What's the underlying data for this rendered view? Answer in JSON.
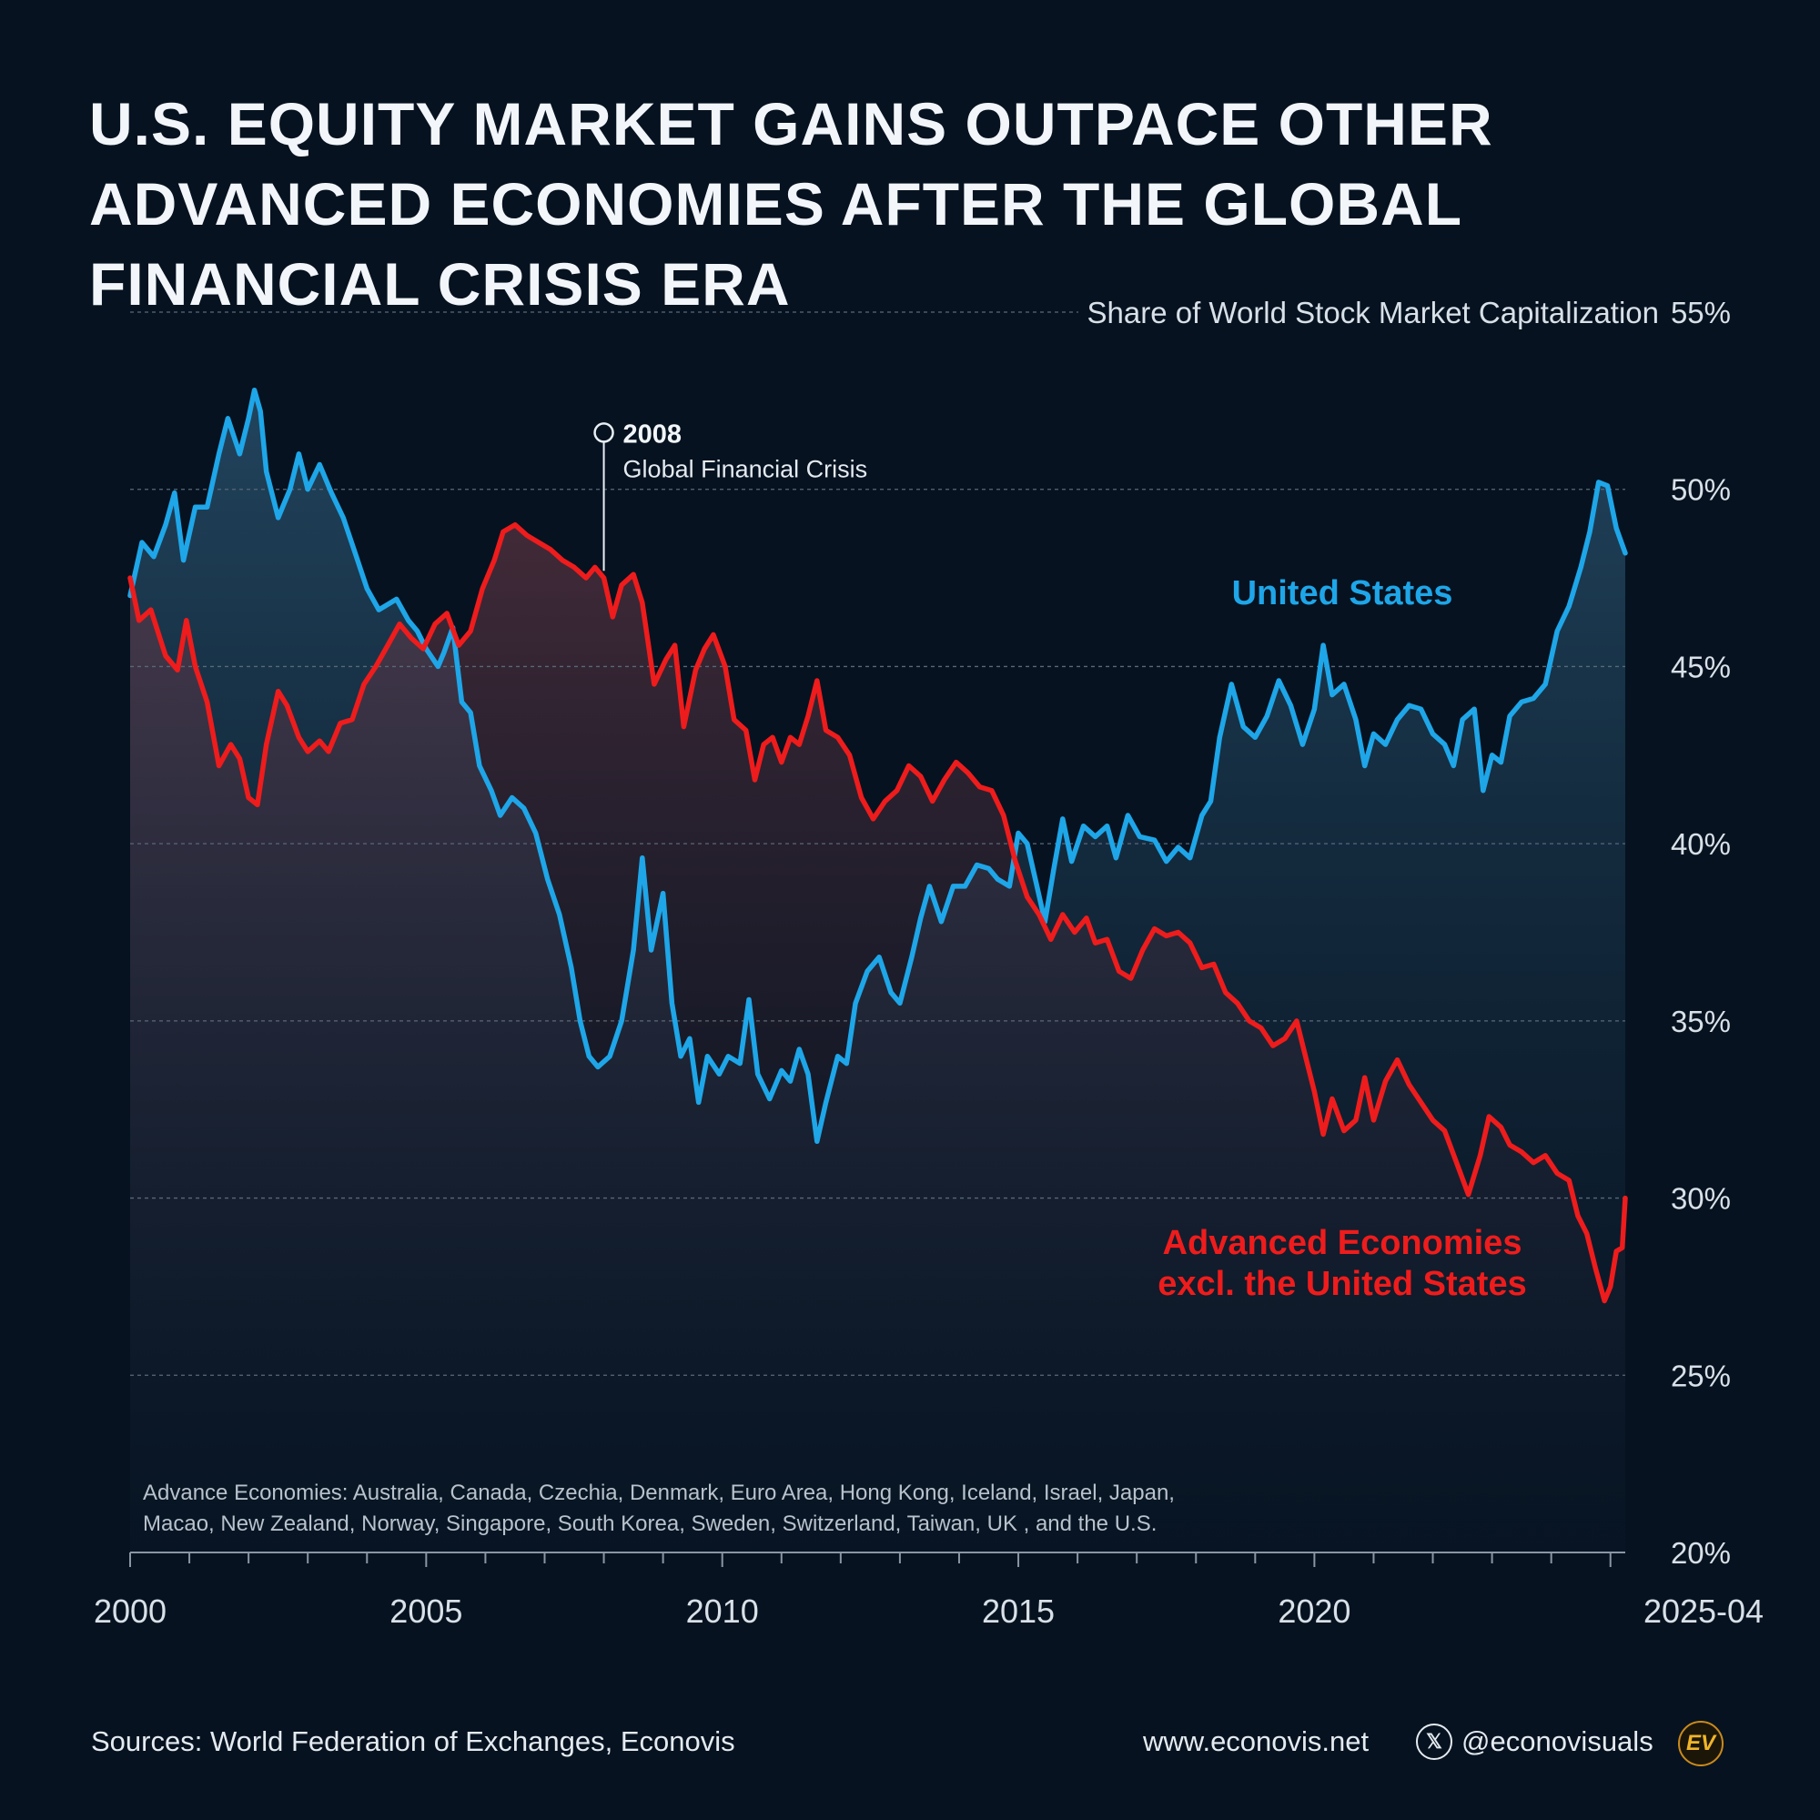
{
  "title": "U.S. EQUITY MARKET GAINS OUTPACE OTHER ADVANCED ECONOMIES AFTER THE GLOBAL FINANCIAL CRISIS ERA",
  "footer": {
    "source": "Sources: World Federation of Exchanges, Econovis",
    "website": "www.econovis.net",
    "handle": "@econovisuals",
    "logo_text": "EV"
  },
  "colors": {
    "background": "#061220",
    "us": "#1ea6e8",
    "ae": "#ee1c1c",
    "grid": "#5a6878",
    "text": "#e4eaf0"
  },
  "chart_data": {
    "type": "line",
    "ylabel": "Share of World Stock Market Capitalization",
    "ylim": [
      20,
      55
    ],
    "yticks": [
      20,
      25,
      30,
      35,
      40,
      45,
      50,
      55
    ],
    "xlim": [
      2000.0,
      2025.25
    ],
    "xticks": [
      {
        "value": 2000,
        "label": "2000"
      },
      {
        "value": 2005,
        "label": "2005"
      },
      {
        "value": 2010,
        "label": "2010"
      },
      {
        "value": 2015,
        "label": "2015"
      },
      {
        "value": 2020,
        "label": "2020"
      },
      {
        "value": 2025.25,
        "label": "2025-04"
      }
    ],
    "grid": true,
    "annotation": {
      "x": 2008.0,
      "y": 51.6,
      "year": "2008",
      "label": "Global Financial Crisis"
    },
    "note_lines": [
      "Advance Economies: Australia, Canada, Czechia, Denmark, Euro Area, Hong Kong, Iceland, Israel, Japan,",
      "Macao, New Zealand, Norway, Singapore, South Korea, Sweden, Switzerland, Taiwan, UK , and the U.S."
    ],
    "series": [
      {
        "name": "United States",
        "label_lines": [
          "United States"
        ],
        "color": "#1ea6e8",
        "points": [
          [
            2000.0,
            47.0
          ],
          [
            2000.2,
            48.5
          ],
          [
            2000.4,
            48.1
          ],
          [
            2000.6,
            49.0
          ],
          [
            2000.75,
            49.9
          ],
          [
            2000.9,
            48.0
          ],
          [
            2001.1,
            49.5
          ],
          [
            2001.3,
            49.5
          ],
          [
            2001.5,
            51.0
          ],
          [
            2001.65,
            52.0
          ],
          [
            2001.85,
            51.0
          ],
          [
            2002.0,
            52.0
          ],
          [
            2002.1,
            52.8
          ],
          [
            2002.2,
            52.2
          ],
          [
            2002.3,
            50.5
          ],
          [
            2002.5,
            49.2
          ],
          [
            2002.7,
            50.0
          ],
          [
            2002.85,
            51.0
          ],
          [
            2003.0,
            50.0
          ],
          [
            2003.2,
            50.7
          ],
          [
            2003.4,
            49.9
          ],
          [
            2003.6,
            49.2
          ],
          [
            2003.8,
            48.2
          ],
          [
            2004.0,
            47.2
          ],
          [
            2004.2,
            46.6
          ],
          [
            2004.5,
            46.9
          ],
          [
            2004.7,
            46.3
          ],
          [
            2004.85,
            46.0
          ],
          [
            2005.0,
            45.5
          ],
          [
            2005.2,
            45.0
          ],
          [
            2005.3,
            45.4
          ],
          [
            2005.45,
            46.1
          ],
          [
            2005.6,
            44.0
          ],
          [
            2005.75,
            43.7
          ],
          [
            2005.9,
            42.2
          ],
          [
            2006.1,
            41.5
          ],
          [
            2006.25,
            40.8
          ],
          [
            2006.45,
            41.3
          ],
          [
            2006.65,
            41.0
          ],
          [
            2006.85,
            40.3
          ],
          [
            2007.05,
            39.0
          ],
          [
            2007.25,
            38.0
          ],
          [
            2007.45,
            36.5
          ],
          [
            2007.6,
            35.0
          ],
          [
            2007.75,
            34.0
          ],
          [
            2007.9,
            33.7
          ],
          [
            2008.1,
            34.0
          ],
          [
            2008.3,
            35.0
          ],
          [
            2008.5,
            37.0
          ],
          [
            2008.65,
            39.6
          ],
          [
            2008.8,
            37.0
          ],
          [
            2009.0,
            38.6
          ],
          [
            2009.15,
            35.5
          ],
          [
            2009.3,
            34.0
          ],
          [
            2009.45,
            34.5
          ],
          [
            2009.6,
            32.7
          ],
          [
            2009.75,
            34.0
          ],
          [
            2009.95,
            33.5
          ],
          [
            2010.1,
            34.0
          ],
          [
            2010.3,
            33.8
          ],
          [
            2010.45,
            35.6
          ],
          [
            2010.6,
            33.5
          ],
          [
            2010.8,
            32.8
          ],
          [
            2011.0,
            33.6
          ],
          [
            2011.15,
            33.3
          ],
          [
            2011.3,
            34.2
          ],
          [
            2011.45,
            33.5
          ],
          [
            2011.6,
            31.6
          ],
          [
            2011.75,
            32.7
          ],
          [
            2011.95,
            34.0
          ],
          [
            2012.1,
            33.8
          ],
          [
            2012.25,
            35.5
          ],
          [
            2012.45,
            36.4
          ],
          [
            2012.65,
            36.8
          ],
          [
            2012.85,
            35.8
          ],
          [
            2013.0,
            35.5
          ],
          [
            2013.2,
            36.8
          ],
          [
            2013.35,
            37.9
          ],
          [
            2013.5,
            38.8
          ],
          [
            2013.7,
            37.8
          ],
          [
            2013.9,
            38.8
          ],
          [
            2014.1,
            38.8
          ],
          [
            2014.3,
            39.4
          ],
          [
            2014.5,
            39.3
          ],
          [
            2014.65,
            39.0
          ],
          [
            2014.85,
            38.8
          ],
          [
            2015.0,
            40.3
          ],
          [
            2015.15,
            40.0
          ],
          [
            2015.3,
            38.9
          ],
          [
            2015.45,
            37.8
          ],
          [
            2015.6,
            39.3
          ],
          [
            2015.75,
            40.7
          ],
          [
            2015.9,
            39.5
          ],
          [
            2016.1,
            40.5
          ],
          [
            2016.3,
            40.2
          ],
          [
            2016.5,
            40.5
          ],
          [
            2016.65,
            39.6
          ],
          [
            2016.85,
            40.8
          ],
          [
            2017.05,
            40.2
          ],
          [
            2017.3,
            40.1
          ],
          [
            2017.5,
            39.5
          ],
          [
            2017.7,
            39.9
          ],
          [
            2017.9,
            39.6
          ],
          [
            2018.1,
            40.8
          ],
          [
            2018.25,
            41.2
          ],
          [
            2018.4,
            43.0
          ],
          [
            2018.6,
            44.5
          ],
          [
            2018.8,
            43.3
          ],
          [
            2019.0,
            43.0
          ],
          [
            2019.2,
            43.6
          ],
          [
            2019.4,
            44.6
          ],
          [
            2019.6,
            43.9
          ],
          [
            2019.8,
            42.8
          ],
          [
            2020.0,
            43.8
          ],
          [
            2020.15,
            45.6
          ],
          [
            2020.3,
            44.2
          ],
          [
            2020.5,
            44.5
          ],
          [
            2020.7,
            43.5
          ],
          [
            2020.85,
            42.2
          ],
          [
            2021.0,
            43.1
          ],
          [
            2021.2,
            42.8
          ],
          [
            2021.4,
            43.5
          ],
          [
            2021.6,
            43.9
          ],
          [
            2021.8,
            43.8
          ],
          [
            2022.0,
            43.1
          ],
          [
            2022.2,
            42.8
          ],
          [
            2022.35,
            42.2
          ],
          [
            2022.5,
            43.5
          ],
          [
            2022.7,
            43.8
          ],
          [
            2022.85,
            41.5
          ],
          [
            2023.0,
            42.5
          ],
          [
            2023.15,
            42.3
          ],
          [
            2023.3,
            43.6
          ],
          [
            2023.5,
            44.0
          ],
          [
            2023.7,
            44.1
          ],
          [
            2023.9,
            44.5
          ],
          [
            2024.1,
            46.0
          ],
          [
            2024.3,
            46.7
          ],
          [
            2024.5,
            47.8
          ],
          [
            2024.65,
            48.8
          ],
          [
            2024.8,
            50.2
          ],
          [
            2024.95,
            50.1
          ],
          [
            2025.1,
            48.9
          ],
          [
            2025.25,
            48.2
          ]
        ]
      },
      {
        "name": "Advanced Economies excl. the United States",
        "label_lines": [
          "Advanced Economies",
          "excl. the United States"
        ],
        "color": "#ee1c1c",
        "points": [
          [
            2000.0,
            47.5
          ],
          [
            2000.15,
            46.3
          ],
          [
            2000.35,
            46.6
          ],
          [
            2000.6,
            45.3
          ],
          [
            2000.8,
            44.9
          ],
          [
            2000.95,
            46.3
          ],
          [
            2001.1,
            45.0
          ],
          [
            2001.3,
            44.0
          ],
          [
            2001.5,
            42.2
          ],
          [
            2001.7,
            42.8
          ],
          [
            2001.85,
            42.4
          ],
          [
            2002.0,
            41.3
          ],
          [
            2002.15,
            41.1
          ],
          [
            2002.3,
            42.8
          ],
          [
            2002.5,
            44.3
          ],
          [
            2002.65,
            43.9
          ],
          [
            2002.85,
            43.0
          ],
          [
            2003.0,
            42.6
          ],
          [
            2003.2,
            42.9
          ],
          [
            2003.35,
            42.6
          ],
          [
            2003.55,
            43.4
          ],
          [
            2003.75,
            43.5
          ],
          [
            2003.95,
            44.5
          ],
          [
            2004.15,
            45.0
          ],
          [
            2004.35,
            45.6
          ],
          [
            2004.55,
            46.2
          ],
          [
            2004.75,
            45.8
          ],
          [
            2004.95,
            45.5
          ],
          [
            2005.15,
            46.2
          ],
          [
            2005.35,
            46.5
          ],
          [
            2005.55,
            45.6
          ],
          [
            2005.75,
            46.0
          ],
          [
            2005.95,
            47.2
          ],
          [
            2006.15,
            48.0
          ],
          [
            2006.3,
            48.8
          ],
          [
            2006.5,
            49.0
          ],
          [
            2006.7,
            48.7
          ],
          [
            2006.9,
            48.5
          ],
          [
            2007.1,
            48.3
          ],
          [
            2007.3,
            48.0
          ],
          [
            2007.5,
            47.8
          ],
          [
            2007.7,
            47.5
          ],
          [
            2007.85,
            47.8
          ],
          [
            2008.0,
            47.5
          ],
          [
            2008.15,
            46.4
          ],
          [
            2008.3,
            47.3
          ],
          [
            2008.5,
            47.6
          ],
          [
            2008.65,
            46.8
          ],
          [
            2008.85,
            44.5
          ],
          [
            2009.05,
            45.2
          ],
          [
            2009.2,
            45.6
          ],
          [
            2009.35,
            43.3
          ],
          [
            2009.55,
            44.9
          ],
          [
            2009.7,
            45.5
          ],
          [
            2009.85,
            45.9
          ],
          [
            2010.05,
            45.0
          ],
          [
            2010.2,
            43.5
          ],
          [
            2010.4,
            43.2
          ],
          [
            2010.55,
            41.8
          ],
          [
            2010.7,
            42.8
          ],
          [
            2010.85,
            43.0
          ],
          [
            2011.0,
            42.3
          ],
          [
            2011.15,
            43.0
          ],
          [
            2011.3,
            42.8
          ],
          [
            2011.45,
            43.6
          ],
          [
            2011.6,
            44.6
          ],
          [
            2011.75,
            43.2
          ],
          [
            2011.95,
            43.0
          ],
          [
            2012.15,
            42.5
          ],
          [
            2012.35,
            41.3
          ],
          [
            2012.55,
            40.7
          ],
          [
            2012.75,
            41.2
          ],
          [
            2012.95,
            41.5
          ],
          [
            2013.15,
            42.2
          ],
          [
            2013.35,
            41.9
          ],
          [
            2013.55,
            41.2
          ],
          [
            2013.75,
            41.8
          ],
          [
            2013.95,
            42.3
          ],
          [
            2014.15,
            42.0
          ],
          [
            2014.35,
            41.6
          ],
          [
            2014.55,
            41.5
          ],
          [
            2014.75,
            40.8
          ],
          [
            2014.95,
            39.5
          ],
          [
            2015.15,
            38.5
          ],
          [
            2015.35,
            38.0
          ],
          [
            2015.55,
            37.3
          ],
          [
            2015.75,
            38.0
          ],
          [
            2015.95,
            37.5
          ],
          [
            2016.15,
            37.9
          ],
          [
            2016.3,
            37.2
          ],
          [
            2016.5,
            37.3
          ],
          [
            2016.7,
            36.4
          ],
          [
            2016.9,
            36.2
          ],
          [
            2017.1,
            37.0
          ],
          [
            2017.3,
            37.6
          ],
          [
            2017.5,
            37.4
          ],
          [
            2017.7,
            37.5
          ],
          [
            2017.9,
            37.2
          ],
          [
            2018.1,
            36.5
          ],
          [
            2018.3,
            36.6
          ],
          [
            2018.5,
            35.8
          ],
          [
            2018.7,
            35.5
          ],
          [
            2018.9,
            35.0
          ],
          [
            2019.1,
            34.8
          ],
          [
            2019.3,
            34.3
          ],
          [
            2019.5,
            34.5
          ],
          [
            2019.7,
            35.0
          ],
          [
            2019.85,
            34.0
          ],
          [
            2020.0,
            33.0
          ],
          [
            2020.15,
            31.8
          ],
          [
            2020.3,
            32.8
          ],
          [
            2020.5,
            31.9
          ],
          [
            2020.7,
            32.2
          ],
          [
            2020.85,
            33.4
          ],
          [
            2021.0,
            32.2
          ],
          [
            2021.2,
            33.3
          ],
          [
            2021.4,
            33.9
          ],
          [
            2021.6,
            33.2
          ],
          [
            2021.8,
            32.7
          ],
          [
            2022.0,
            32.2
          ],
          [
            2022.2,
            31.9
          ],
          [
            2022.4,
            31.0
          ],
          [
            2022.6,
            30.1
          ],
          [
            2022.8,
            31.2
          ],
          [
            2022.95,
            32.3
          ],
          [
            2023.15,
            32.0
          ],
          [
            2023.3,
            31.5
          ],
          [
            2023.5,
            31.3
          ],
          [
            2023.7,
            31.0
          ],
          [
            2023.9,
            31.2
          ],
          [
            2024.1,
            30.7
          ],
          [
            2024.3,
            30.5
          ],
          [
            2024.45,
            29.5
          ],
          [
            2024.6,
            29.0
          ],
          [
            2024.75,
            28.0
          ],
          [
            2024.9,
            27.1
          ],
          [
            2025.0,
            27.5
          ],
          [
            2025.1,
            28.5
          ],
          [
            2025.2,
            28.6
          ],
          [
            2025.25,
            30.0
          ]
        ]
      }
    ]
  }
}
